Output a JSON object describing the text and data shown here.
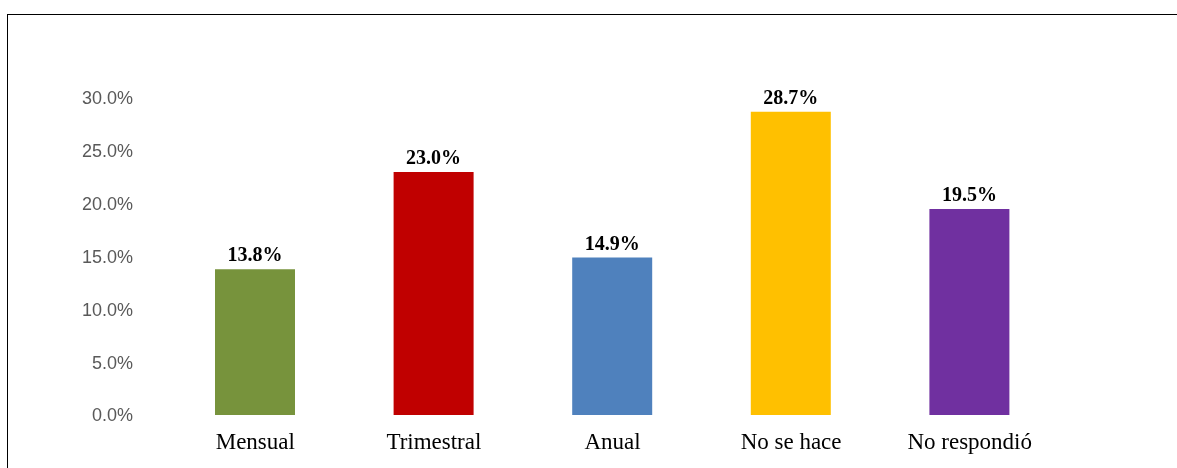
{
  "chart_data": {
    "type": "bar",
    "categories": [
      "Mensual",
      "Trimestral",
      "Anual",
      "No se hace",
      "No respondió"
    ],
    "values": [
      13.8,
      23.0,
      14.9,
      28.7,
      19.5
    ],
    "colors": [
      "#77933c",
      "#c00000",
      "#4f81bd",
      "#ffc000",
      "#7030a0"
    ],
    "value_labels": [
      "13.8%",
      "23.0%",
      "14.9%",
      "28.7%",
      "19.5%"
    ],
    "ylim": [
      0,
      30
    ],
    "yticks": [
      {
        "value": 0,
        "label": "0.0%"
      },
      {
        "value": 5,
        "label": "5.0%"
      },
      {
        "value": 10,
        "label": "10.0%"
      },
      {
        "value": 15,
        "label": "15.0%"
      },
      {
        "value": 20,
        "label": "20.0%"
      },
      {
        "value": 25,
        "label": "25.0%"
      },
      {
        "value": 30,
        "label": "30.0%"
      }
    ]
  }
}
